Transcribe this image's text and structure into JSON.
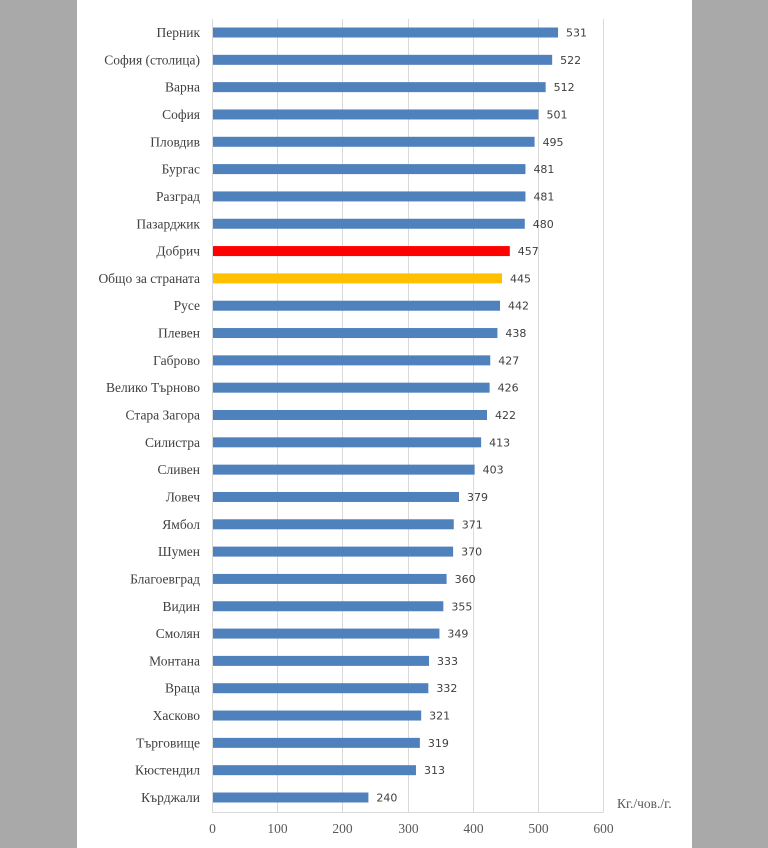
{
  "chart_data": {
    "type": "bar",
    "orientation": "horizontal",
    "title": "",
    "xlabel": "Кг./чов./г.",
    "ylabel": "",
    "xlim": [
      0,
      600
    ],
    "x_ticks": [
      0,
      100,
      200,
      300,
      400,
      500,
      600
    ],
    "grid": true,
    "legend": "none",
    "data_labels": true,
    "categories": [
      "Перник",
      "София (столица)",
      "Варна",
      "София",
      "Пловдив",
      "Бургас",
      "Разград",
      "Пазарджик",
      "Добрич",
      "Общо за страната",
      "Русе",
      "Плевен",
      "Габрово",
      "Велико Търново",
      "Стара Загора",
      "Силистра",
      "Сливен",
      "Ловеч",
      "Ямбол",
      "Шумен",
      "Благоевград",
      "Видин",
      "Смолян",
      "Монтана",
      "Враца",
      "Хасково",
      "Търговище",
      "Кюстендил",
      "Кърджали"
    ],
    "values": [
      531,
      522,
      512,
      501,
      495,
      481,
      481,
      480,
      457,
      445,
      442,
      438,
      427,
      426,
      422,
      413,
      403,
      379,
      371,
      370,
      360,
      355,
      349,
      333,
      332,
      321,
      319,
      313,
      240
    ],
    "colors": {
      "default": "#4f81bd",
      "highlight": {
        "Добрич": "#ff0000",
        "Общо за страната": "#ffc000"
      },
      "grid": "#d9d9d9",
      "background": "#ffffff",
      "page_surround": "#a9a9a9"
    }
  }
}
